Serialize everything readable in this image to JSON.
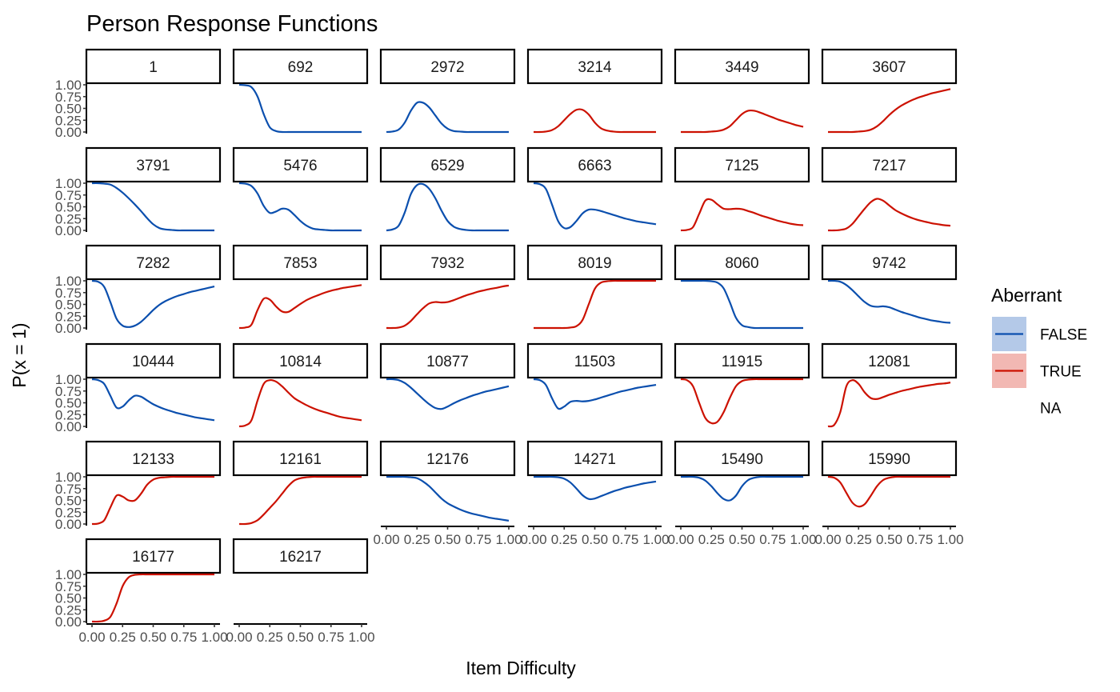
{
  "chart_data": {
    "type": "line",
    "title": "Person Response Functions",
    "xlabel": "Item Difficulty",
    "ylabel": "P(x = 1)",
    "xlim": [
      0,
      1
    ],
    "ylim": [
      0,
      1
    ],
    "x_ticks": [
      "0.00",
      "0.25",
      "0.50",
      "0.75",
      "1.00"
    ],
    "y_ticks": [
      "0.00",
      "0.25",
      "0.50",
      "0.75",
      "1.00"
    ],
    "grid": false,
    "facet_layout": {
      "ncol": 6
    },
    "legend": {
      "title": "Aberrant",
      "position": "right",
      "entries": [
        {
          "label": "FALSE",
          "color": "#0B4FAE",
          "fill": "#B4C9E8"
        },
        {
          "label": "TRUE",
          "color": "#CC1100",
          "fill": "#F2B8B3"
        },
        {
          "label": "NA",
          "color": null,
          "fill": null
        }
      ]
    },
    "x": [
      0,
      0.05,
      0.1,
      0.15,
      0.2,
      0.25,
      0.3,
      0.35,
      0.4,
      0.45,
      0.5,
      0.55,
      0.6,
      0.65,
      0.7,
      0.75,
      0.8,
      0.85,
      0.9,
      0.95,
      1.0
    ],
    "panels": [
      {
        "id": "1",
        "aberrant": "NA",
        "values": null
      },
      {
        "id": "692",
        "aberrant": "FALSE",
        "values": [
          1.0,
          0.99,
          0.95,
          0.75,
          0.38,
          0.1,
          0.02,
          0.0,
          0.0,
          0.0,
          0.0,
          0.0,
          0.0,
          0.0,
          0.0,
          0.0,
          0.0,
          0.0,
          0.0,
          0.0,
          0.0
        ]
      },
      {
        "id": "2972",
        "aberrant": "FALSE",
        "values": [
          0.0,
          0.01,
          0.05,
          0.2,
          0.45,
          0.62,
          0.62,
          0.52,
          0.35,
          0.18,
          0.07,
          0.02,
          0.01,
          0.0,
          0.0,
          0.0,
          0.0,
          0.0,
          0.0,
          0.0,
          0.0
        ]
      },
      {
        "id": "3214",
        "aberrant": "TRUE",
        "values": [
          0.0,
          0.0,
          0.01,
          0.04,
          0.12,
          0.25,
          0.38,
          0.47,
          0.47,
          0.37,
          0.2,
          0.08,
          0.03,
          0.01,
          0.0,
          0.0,
          0.0,
          0.0,
          0.0,
          0.0,
          0.0
        ]
      },
      {
        "id": "3449",
        "aberrant": "TRUE",
        "values": [
          0.0,
          0.0,
          0.0,
          0.0,
          0.0,
          0.01,
          0.02,
          0.05,
          0.12,
          0.25,
          0.38,
          0.45,
          0.45,
          0.41,
          0.36,
          0.31,
          0.26,
          0.22,
          0.18,
          0.14,
          0.11
        ]
      },
      {
        "id": "3607",
        "aberrant": "TRUE",
        "values": [
          0.0,
          0.0,
          0.0,
          0.0,
          0.0,
          0.01,
          0.02,
          0.05,
          0.12,
          0.23,
          0.36,
          0.47,
          0.56,
          0.63,
          0.69,
          0.74,
          0.78,
          0.82,
          0.85,
          0.88,
          0.91
        ]
      },
      {
        "id": "3791",
        "aberrant": "FALSE",
        "values": [
          1.0,
          1.0,
          0.99,
          0.97,
          0.9,
          0.8,
          0.68,
          0.55,
          0.41,
          0.26,
          0.13,
          0.05,
          0.02,
          0.01,
          0.0,
          0.0,
          0.0,
          0.0,
          0.0,
          0.0,
          0.0
        ]
      },
      {
        "id": "5476",
        "aberrant": "FALSE",
        "values": [
          1.0,
          0.99,
          0.94,
          0.78,
          0.52,
          0.37,
          0.4,
          0.46,
          0.44,
          0.33,
          0.2,
          0.1,
          0.04,
          0.02,
          0.01,
          0.0,
          0.0,
          0.0,
          0.0,
          0.0,
          0.0
        ]
      },
      {
        "id": "6529",
        "aberrant": "FALSE",
        "values": [
          0.0,
          0.02,
          0.1,
          0.38,
          0.77,
          0.96,
          0.98,
          0.88,
          0.68,
          0.42,
          0.2,
          0.08,
          0.03,
          0.01,
          0.0,
          0.0,
          0.0,
          0.0,
          0.0,
          0.0,
          0.0
        ]
      },
      {
        "id": "6663",
        "aberrant": "FALSE",
        "values": [
          1.0,
          0.98,
          0.88,
          0.55,
          0.2,
          0.05,
          0.07,
          0.2,
          0.36,
          0.44,
          0.44,
          0.41,
          0.37,
          0.33,
          0.29,
          0.25,
          0.22,
          0.19,
          0.17,
          0.15,
          0.13
        ]
      },
      {
        "id": "7125",
        "aberrant": "TRUE",
        "values": [
          0.0,
          0.01,
          0.07,
          0.35,
          0.63,
          0.65,
          0.55,
          0.46,
          0.45,
          0.46,
          0.45,
          0.41,
          0.37,
          0.32,
          0.28,
          0.24,
          0.2,
          0.17,
          0.14,
          0.12,
          0.11
        ]
      },
      {
        "id": "7217",
        "aberrant": "TRUE",
        "values": [
          0.0,
          0.0,
          0.01,
          0.04,
          0.14,
          0.3,
          0.46,
          0.6,
          0.67,
          0.63,
          0.53,
          0.43,
          0.36,
          0.3,
          0.25,
          0.21,
          0.18,
          0.15,
          0.13,
          0.11,
          0.1
        ]
      },
      {
        "id": "7282",
        "aberrant": "FALSE",
        "values": [
          1.0,
          0.98,
          0.87,
          0.55,
          0.2,
          0.05,
          0.02,
          0.05,
          0.13,
          0.25,
          0.38,
          0.49,
          0.57,
          0.63,
          0.68,
          0.72,
          0.76,
          0.79,
          0.82,
          0.85,
          0.88
        ]
      },
      {
        "id": "7853",
        "aberrant": "TRUE",
        "values": [
          0.0,
          0.01,
          0.07,
          0.38,
          0.62,
          0.6,
          0.46,
          0.35,
          0.34,
          0.42,
          0.51,
          0.59,
          0.65,
          0.7,
          0.75,
          0.79,
          0.82,
          0.85,
          0.87,
          0.89,
          0.91
        ]
      },
      {
        "id": "7932",
        "aberrant": "TRUE",
        "values": [
          0.0,
          0.0,
          0.01,
          0.05,
          0.15,
          0.29,
          0.42,
          0.52,
          0.55,
          0.54,
          0.55,
          0.59,
          0.64,
          0.69,
          0.73,
          0.77,
          0.8,
          0.83,
          0.85,
          0.88,
          0.9
        ]
      },
      {
        "id": "8019",
        "aberrant": "TRUE",
        "values": [
          0.0,
          0.0,
          0.0,
          0.0,
          0.0,
          0.0,
          0.01,
          0.04,
          0.17,
          0.5,
          0.83,
          0.96,
          0.99,
          1.0,
          1.0,
          1.0,
          1.0,
          1.0,
          1.0,
          1.0,
          1.0
        ]
      },
      {
        "id": "8060",
        "aberrant": "FALSE",
        "values": [
          1.0,
          1.0,
          1.0,
          1.0,
          1.0,
          0.99,
          0.96,
          0.84,
          0.55,
          0.22,
          0.06,
          0.02,
          0.0,
          0.0,
          0.0,
          0.0,
          0.0,
          0.0,
          0.0,
          0.0,
          0.0
        ]
      },
      {
        "id": "9742",
        "aberrant": "FALSE",
        "values": [
          1.0,
          1.0,
          0.98,
          0.91,
          0.8,
          0.67,
          0.55,
          0.47,
          0.45,
          0.46,
          0.44,
          0.39,
          0.34,
          0.3,
          0.26,
          0.22,
          0.19,
          0.16,
          0.14,
          0.12,
          0.11
        ]
      },
      {
        "id": "10444",
        "aberrant": "FALSE",
        "values": [
          1.0,
          0.98,
          0.9,
          0.65,
          0.4,
          0.42,
          0.55,
          0.65,
          0.63,
          0.55,
          0.47,
          0.41,
          0.36,
          0.32,
          0.28,
          0.25,
          0.22,
          0.19,
          0.17,
          0.15,
          0.13
        ]
      },
      {
        "id": "10814",
        "aberrant": "TRUE",
        "values": [
          0.0,
          0.02,
          0.13,
          0.55,
          0.9,
          0.98,
          0.95,
          0.85,
          0.72,
          0.6,
          0.52,
          0.45,
          0.39,
          0.34,
          0.3,
          0.26,
          0.22,
          0.19,
          0.17,
          0.15,
          0.13
        ]
      },
      {
        "id": "10877",
        "aberrant": "FALSE",
        "values": [
          1.0,
          1.0,
          0.98,
          0.92,
          0.82,
          0.7,
          0.58,
          0.47,
          0.39,
          0.37,
          0.42,
          0.49,
          0.55,
          0.6,
          0.65,
          0.69,
          0.73,
          0.76,
          0.79,
          0.82,
          0.85
        ]
      },
      {
        "id": "11503",
        "aberrant": "FALSE",
        "values": [
          1.0,
          0.98,
          0.88,
          0.6,
          0.38,
          0.42,
          0.52,
          0.54,
          0.53,
          0.54,
          0.57,
          0.61,
          0.65,
          0.69,
          0.73,
          0.76,
          0.79,
          0.82,
          0.84,
          0.86,
          0.88
        ]
      },
      {
        "id": "11915",
        "aberrant": "TRUE",
        "values": [
          1.0,
          0.98,
          0.85,
          0.5,
          0.18,
          0.07,
          0.1,
          0.3,
          0.6,
          0.85,
          0.96,
          0.99,
          1.0,
          1.0,
          1.0,
          1.0,
          1.0,
          1.0,
          1.0,
          1.0,
          1.0
        ]
      },
      {
        "id": "12081",
        "aberrant": "TRUE",
        "values": [
          0.0,
          0.03,
          0.3,
          0.85,
          0.98,
          0.9,
          0.72,
          0.6,
          0.58,
          0.62,
          0.67,
          0.71,
          0.75,
          0.78,
          0.81,
          0.84,
          0.86,
          0.88,
          0.9,
          0.91,
          0.93
        ]
      },
      {
        "id": "12133",
        "aberrant": "TRUE",
        "values": [
          0.0,
          0.01,
          0.08,
          0.35,
          0.6,
          0.58,
          0.5,
          0.5,
          0.64,
          0.83,
          0.94,
          0.98,
          0.99,
          1.0,
          1.0,
          1.0,
          1.0,
          1.0,
          1.0,
          1.0,
          1.0
        ]
      },
      {
        "id": "12161",
        "aberrant": "TRUE",
        "values": [
          0.0,
          0.0,
          0.02,
          0.08,
          0.2,
          0.34,
          0.48,
          0.64,
          0.8,
          0.92,
          0.97,
          0.99,
          1.0,
          1.0,
          1.0,
          1.0,
          1.0,
          1.0,
          1.0,
          1.0,
          1.0
        ]
      },
      {
        "id": "12176",
        "aberrant": "FALSE",
        "values": [
          1.0,
          1.0,
          1.0,
          1.0,
          0.99,
          0.97,
          0.9,
          0.8,
          0.67,
          0.54,
          0.44,
          0.37,
          0.31,
          0.26,
          0.22,
          0.19,
          0.16,
          0.13,
          0.11,
          0.09,
          0.07
        ]
      },
      {
        "id": "14271",
        "aberrant": "FALSE",
        "values": [
          1.0,
          1.0,
          1.0,
          1.0,
          0.99,
          0.96,
          0.88,
          0.75,
          0.61,
          0.53,
          0.54,
          0.59,
          0.64,
          0.69,
          0.73,
          0.77,
          0.8,
          0.83,
          0.86,
          0.88,
          0.9
        ]
      },
      {
        "id": "15490",
        "aberrant": "FALSE",
        "values": [
          1.0,
          1.0,
          1.0,
          0.98,
          0.92,
          0.8,
          0.65,
          0.53,
          0.5,
          0.6,
          0.8,
          0.93,
          0.98,
          1.0,
          1.0,
          1.0,
          1.0,
          1.0,
          1.0,
          1.0,
          1.0
        ]
      },
      {
        "id": "15990",
        "aberrant": "TRUE",
        "values": [
          1.0,
          0.98,
          0.88,
          0.66,
          0.45,
          0.37,
          0.42,
          0.6,
          0.8,
          0.93,
          0.98,
          1.0,
          1.0,
          1.0,
          1.0,
          1.0,
          1.0,
          1.0,
          1.0,
          1.0,
          1.0
        ]
      },
      {
        "id": "16177",
        "aberrant": "TRUE",
        "values": [
          0.0,
          0.0,
          0.02,
          0.1,
          0.38,
          0.75,
          0.94,
          0.99,
          1.0,
          1.0,
          1.0,
          1.0,
          1.0,
          1.0,
          1.0,
          1.0,
          1.0,
          1.0,
          1.0,
          1.0,
          1.0
        ]
      },
      {
        "id": "16217",
        "aberrant": "NA",
        "values": null
      }
    ]
  }
}
